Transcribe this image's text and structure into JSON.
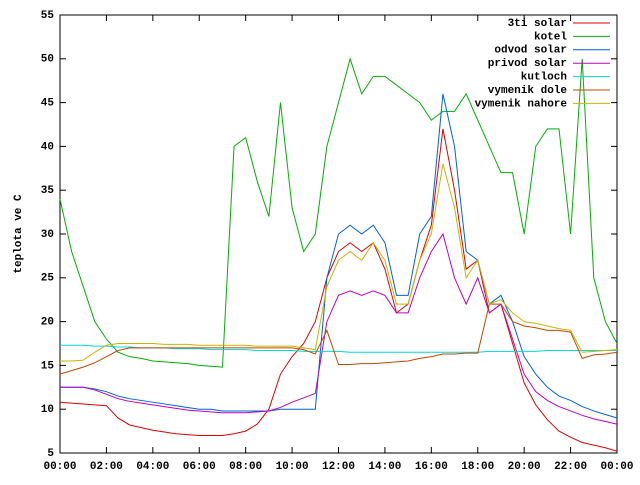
{
  "chart_data": {
    "type": "line",
    "y_label": "teplota ve C",
    "legend": "top right",
    "xlim": [
      0,
      24
    ],
    "xticks": [
      {
        "value": 0,
        "label": "00:00"
      },
      {
        "value": 2,
        "label": "02:00"
      },
      {
        "value": 4,
        "label": "04:00"
      },
      {
        "value": 6,
        "label": "06:00"
      },
      {
        "value": 8,
        "label": "08:00"
      },
      {
        "value": 10,
        "label": "10:00"
      },
      {
        "value": 12,
        "label": "12:00"
      },
      {
        "value": 14,
        "label": "14:00"
      },
      {
        "value": 16,
        "label": "16:00"
      },
      {
        "value": 18,
        "label": "18:00"
      },
      {
        "value": 20,
        "label": "20:00"
      },
      {
        "value": 22,
        "label": "22:00"
      },
      {
        "value": 24,
        "label": "00:00"
      }
    ],
    "ylim": [
      5,
      55
    ],
    "yticks": [
      5,
      10,
      15,
      20,
      25,
      30,
      35,
      40,
      45,
      50,
      55
    ],
    "x": [
      0,
      0.5,
      1,
      1.5,
      2,
      2.5,
      3,
      3.5,
      4,
      4.5,
      5,
      5.5,
      6,
      6.5,
      7,
      7.5,
      8,
      8.5,
      9,
      9.5,
      10,
      10.5,
      11,
      11.5,
      12,
      12.5,
      13,
      13.5,
      14,
      14.5,
      15,
      15.5,
      16,
      16.5,
      17,
      17.5,
      18,
      18.5,
      19,
      19.5,
      20,
      20.5,
      21,
      21.5,
      22,
      22.5,
      23,
      23.5,
      24
    ],
    "series": [
      {
        "name": "3ti solar",
        "color": "#e00000",
        "values": [
          10.8,
          10.7,
          10.6,
          10.5,
          10.4,
          9,
          8.2,
          7.9,
          7.6,
          7.4,
          7.2,
          7.1,
          7,
          7,
          7,
          7.2,
          7.5,
          8.3,
          10,
          14,
          16,
          17.5,
          20,
          25,
          28,
          29,
          28,
          29,
          26,
          21,
          22,
          27,
          31,
          42,
          35,
          26,
          27,
          21,
          22,
          17.5,
          13,
          10.5,
          8.8,
          7.5,
          6.8,
          6.2,
          5.9,
          5.6,
          5.2
        ]
      },
      {
        "name": "kotel",
        "color": "#00b000",
        "values": [
          34,
          28,
          24,
          20,
          18,
          16.5,
          16,
          15.8,
          15.5,
          15.4,
          15.3,
          15.2,
          15,
          14.9,
          14.8,
          40,
          41,
          36,
          32,
          45,
          33,
          28,
          30,
          40,
          45,
          50,
          46,
          48,
          48,
          47,
          46,
          45,
          43,
          44,
          44,
          46,
          43,
          40,
          37,
          37,
          30,
          40,
          42,
          42,
          30,
          50,
          25,
          20,
          17.5
        ]
      },
      {
        "name": "odvod solar",
        "color": "#0060e0",
        "values": [
          12.5,
          12.5,
          12.5,
          12.3,
          12,
          11.5,
          11.2,
          11,
          10.8,
          10.6,
          10.4,
          10.2,
          10,
          10,
          9.8,
          9.8,
          9.8,
          9.8,
          9.8,
          10,
          10,
          10,
          10,
          25,
          30,
          31,
          30,
          31,
          29,
          23,
          23,
          30,
          32,
          46,
          40,
          28,
          27,
          22,
          23,
          20,
          16,
          14,
          12.5,
          11.5,
          11,
          10.3,
          9.8,
          9.4,
          9
        ]
      },
      {
        "name": "privod solar",
        "color": "#c000c0",
        "values": [
          12.5,
          12.5,
          12.5,
          12.2,
          11.7,
          11.2,
          10.9,
          10.7,
          10.5,
          10.3,
          10.1,
          9.9,
          9.8,
          9.7,
          9.6,
          9.6,
          9.6,
          9.7,
          9.8,
          10.2,
          10.8,
          11.3,
          11.8,
          20,
          23,
          23.5,
          23,
          23.5,
          23,
          21,
          21,
          25,
          28,
          30,
          25,
          22,
          25,
          21,
          22,
          18,
          14,
          12,
          11,
          10.3,
          9.8,
          9.3,
          8.9,
          8.6,
          8.3
        ]
      },
      {
        "name": "kutloch",
        "color": "#00d8d8",
        "values": [
          17.3,
          17.3,
          17.3,
          17.2,
          17.2,
          17.1,
          17.1,
          17,
          17,
          17,
          16.9,
          16.9,
          16.9,
          16.8,
          16.8,
          16.8,
          16.8,
          16.7,
          16.7,
          16.7,
          16.7,
          16.6,
          16.6,
          16.6,
          16.6,
          16.5,
          16.5,
          16.5,
          16.5,
          16.5,
          16.5,
          16.5,
          16.5,
          16.5,
          16.5,
          16.5,
          16.5,
          16.6,
          16.6,
          16.6,
          16.6,
          16.6,
          16.7,
          16.7,
          16.7,
          16.7,
          16.7,
          16.7,
          16.7
        ]
      },
      {
        "name": "vymenik dole",
        "color": "#c04800",
        "values": [
          14,
          14.4,
          14.8,
          15.3,
          16,
          16.7,
          17,
          17,
          17,
          17,
          17,
          17,
          17,
          17,
          17,
          17,
          17,
          17,
          17,
          17,
          17,
          16.8,
          16.3,
          19,
          15.1,
          15.1,
          15.2,
          15.2,
          15.3,
          15.4,
          15.5,
          15.8,
          16,
          16.3,
          16.3,
          16.4,
          16.4,
          22,
          22,
          20,
          19.5,
          19.3,
          19,
          19,
          18.8,
          15.8,
          16.2,
          16.3,
          16.5
        ]
      },
      {
        "name": "vymenik nahore",
        "color": "#c8b400",
        "values": [
          15.5,
          15.5,
          15.6,
          16.5,
          17.3,
          17.5,
          17.5,
          17.5,
          17.5,
          17.4,
          17.4,
          17.4,
          17.3,
          17.3,
          17.3,
          17.3,
          17.3,
          17.2,
          17.2,
          17.2,
          17.2,
          17,
          16.8,
          24,
          27,
          28,
          27,
          29,
          27,
          22,
          22,
          27,
          30,
          38,
          33,
          25,
          27,
          22,
          22.5,
          21,
          20,
          19.8,
          19.5,
          19.2,
          19,
          16.5,
          16.6,
          16.7,
          16.8
        ]
      }
    ]
  }
}
